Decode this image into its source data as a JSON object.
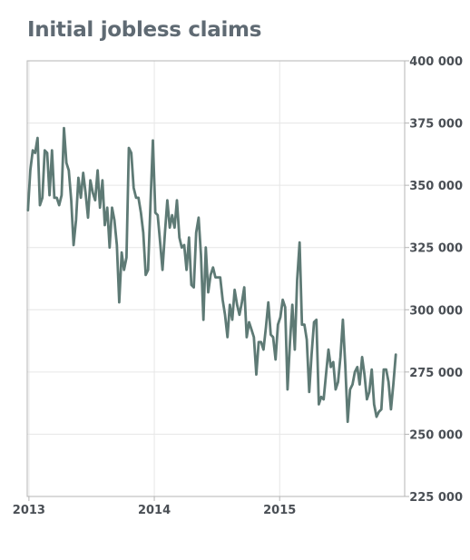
{
  "chart_data": {
    "type": "line",
    "title": "Initial jobless claims",
    "xlabel": "",
    "ylabel": "",
    "x_tick_labels": [
      "2013",
      "2014",
      "2015"
    ],
    "y_tick_labels": [
      "400 000",
      "375 000",
      "350 000",
      "325 000",
      "300 000",
      "275 000",
      "250 000",
      "225 000"
    ],
    "y_ticks": [
      400000,
      375000,
      350000,
      325000,
      300000,
      275000,
      250000,
      225000
    ],
    "ylim": [
      225000,
      400000
    ],
    "xlim": [
      "2012-12-27",
      "2015-12-31"
    ],
    "grid": true,
    "legend": "none",
    "line_color": "#5e7a75",
    "series": [
      {
        "x_start": "2012-12-29",
        "frequency": "weekly",
        "values": [
          340000,
          356000,
          364000,
          363000,
          369000,
          342000,
          345000,
          364000,
          363000,
          346000,
          364000,
          345000,
          345000,
          342000,
          346000,
          373000,
          359000,
          356000,
          344000,
          326000,
          336000,
          353000,
          345000,
          355000,
          347000,
          337000,
          352000,
          347000,
          344000,
          356000,
          341000,
          352000,
          334000,
          341000,
          325000,
          341000,
          336000,
          326000,
          303000,
          323000,
          316000,
          321000,
          365000,
          363000,
          349000,
          345000,
          345000,
          339000,
          331000,
          314000,
          316000,
          343000,
          368000,
          339000,
          338000,
          327000,
          316000,
          331000,
          344000,
          333000,
          338000,
          333000,
          344000,
          329000,
          325000,
          326000,
          316000,
          329000,
          310000,
          309000,
          331000,
          337000,
          322000,
          296000,
          325000,
          307000,
          314000,
          317000,
          313000,
          313000,
          313000,
          304000,
          298000,
          289000,
          302000,
          296000,
          308000,
          302000,
          298000,
          303000,
          309000,
          289000,
          295000,
          292000,
          289000,
          274000,
          287000,
          287000,
          284000,
          293000,
          303000,
          290000,
          289000,
          280000,
          294000,
          297000,
          304000,
          301000,
          268000,
          287000,
          302000,
          284000,
          312000,
          327000,
          294000,
          294000,
          288000,
          267000,
          282000,
          295000,
          296000,
          262000,
          265000,
          264000,
          274000,
          284000,
          277000,
          279000,
          268000,
          271000,
          281000,
          296000,
          278000,
          255000,
          268000,
          270000,
          275000,
          277000,
          270000,
          281000,
          274000,
          264000,
          267000,
          276000,
          262000,
          257000,
          259000,
          260000,
          276000,
          276000,
          271000,
          260000,
          270000,
          282000
        ]
      }
    ]
  }
}
